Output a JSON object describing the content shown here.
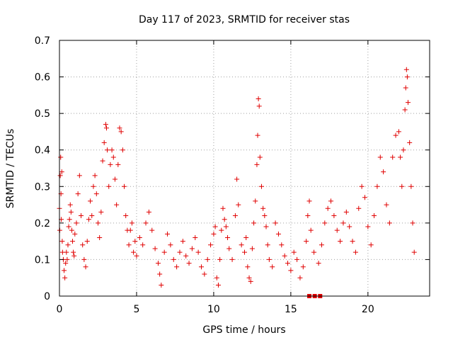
{
  "chart_data": {
    "type": "scatter",
    "title": "Day 117 of 2023, SRMTID for receiver stas",
    "xlabel": "GPS time / hours",
    "ylabel": "SRMTID / TECUs",
    "xlim": [
      0,
      24
    ],
    "ylim": [
      0,
      0.7
    ],
    "xticks": [
      0,
      5,
      10,
      15,
      20
    ],
    "yticks": [
      0,
      0.1,
      0.2,
      0.3,
      0.4,
      0.5,
      0.6,
      0.7
    ],
    "grid": true,
    "marker": "+",
    "color": "#e00000",
    "series": [
      {
        "name": "SRMTID",
        "points": [
          [
            0.0,
            0.24
          ],
          [
            0.02,
            0.18
          ],
          [
            0.05,
            0.33
          ],
          [
            0.08,
            0.38
          ],
          [
            0.1,
            0.28
          ],
          [
            0.12,
            0.21
          ],
          [
            0.15,
            0.34
          ],
          [
            0.18,
            0.15
          ],
          [
            0.2,
            0.12
          ],
          [
            0.25,
            0.1
          ],
          [
            0.3,
            0.07
          ],
          [
            0.35,
            0.05
          ],
          [
            0.4,
            0.09
          ],
          [
            0.45,
            0.12
          ],
          [
            0.5,
            0.1
          ],
          [
            0.55,
            0.14
          ],
          [
            0.6,
            0.19
          ],
          [
            0.65,
            0.21
          ],
          [
            0.7,
            0.25
          ],
          [
            0.75,
            0.23
          ],
          [
            0.8,
            0.18
          ],
          [
            0.85,
            0.15
          ],
          [
            0.9,
            0.12
          ],
          [
            0.95,
            0.11
          ],
          [
            1.0,
            0.17
          ],
          [
            1.1,
            0.2
          ],
          [
            1.2,
            0.28
          ],
          [
            1.3,
            0.33
          ],
          [
            1.4,
            0.22
          ],
          [
            1.5,
            0.14
          ],
          [
            1.6,
            0.1
          ],
          [
            1.7,
            0.08
          ],
          [
            1.8,
            0.15
          ],
          [
            1.9,
            0.21
          ],
          [
            2.0,
            0.26
          ],
          [
            2.1,
            0.22
          ],
          [
            2.2,
            0.3
          ],
          [
            2.3,
            0.33
          ],
          [
            2.4,
            0.28
          ],
          [
            2.5,
            0.2
          ],
          [
            2.6,
            0.16
          ],
          [
            2.7,
            0.23
          ],
          [
            2.8,
            0.37
          ],
          [
            2.9,
            0.42
          ],
          [
            3.0,
            0.47
          ],
          [
            3.05,
            0.46
          ],
          [
            3.1,
            0.4
          ],
          [
            3.2,
            0.3
          ],
          [
            3.3,
            0.36
          ],
          [
            3.4,
            0.4
          ],
          [
            3.5,
            0.38
          ],
          [
            3.6,
            0.32
          ],
          [
            3.7,
            0.25
          ],
          [
            3.8,
            0.36
          ],
          [
            3.9,
            0.46
          ],
          [
            4.0,
            0.45
          ],
          [
            4.1,
            0.4
          ],
          [
            4.2,
            0.3
          ],
          [
            4.3,
            0.22
          ],
          [
            4.4,
            0.18
          ],
          [
            4.5,
            0.14
          ],
          [
            4.6,
            0.18
          ],
          [
            4.7,
            0.2
          ],
          [
            4.8,
            0.12
          ],
          [
            4.9,
            0.15
          ],
          [
            5.0,
            0.11
          ],
          [
            5.2,
            0.16
          ],
          [
            5.4,
            0.14
          ],
          [
            5.6,
            0.2
          ],
          [
            5.8,
            0.23
          ],
          [
            6.0,
            0.18
          ],
          [
            6.2,
            0.13
          ],
          [
            6.4,
            0.09
          ],
          [
            6.5,
            0.06
          ],
          [
            6.6,
            0.03
          ],
          [
            6.8,
            0.12
          ],
          [
            7.0,
            0.17
          ],
          [
            7.2,
            0.14
          ],
          [
            7.4,
            0.1
          ],
          [
            7.6,
            0.08
          ],
          [
            7.8,
            0.12
          ],
          [
            8.0,
            0.15
          ],
          [
            8.2,
            0.11
          ],
          [
            8.4,
            0.09
          ],
          [
            8.6,
            0.13
          ],
          [
            8.8,
            0.16
          ],
          [
            9.0,
            0.12
          ],
          [
            9.2,
            0.08
          ],
          [
            9.4,
            0.06
          ],
          [
            9.6,
            0.1
          ],
          [
            9.8,
            0.14
          ],
          [
            10.0,
            0.17
          ],
          [
            10.1,
            0.19
          ],
          [
            10.2,
            0.05
          ],
          [
            10.3,
            0.03
          ],
          [
            10.4,
            0.1
          ],
          [
            10.5,
            0.18
          ],
          [
            10.6,
            0.24
          ],
          [
            10.7,
            0.21
          ],
          [
            10.8,
            0.19
          ],
          [
            10.9,
            0.16
          ],
          [
            11.0,
            0.13
          ],
          [
            11.2,
            0.1
          ],
          [
            11.4,
            0.22
          ],
          [
            11.5,
            0.32
          ],
          [
            11.6,
            0.25
          ],
          [
            11.8,
            0.14
          ],
          [
            12.0,
            0.12
          ],
          [
            12.1,
            0.16
          ],
          [
            12.2,
            0.08
          ],
          [
            12.3,
            0.05
          ],
          [
            12.4,
            0.04
          ],
          [
            12.5,
            0.13
          ],
          [
            12.6,
            0.2
          ],
          [
            12.7,
            0.26
          ],
          [
            12.8,
            0.36
          ],
          [
            12.85,
            0.44
          ],
          [
            12.9,
            0.54
          ],
          [
            12.95,
            0.52
          ],
          [
            13.0,
            0.38
          ],
          [
            13.1,
            0.3
          ],
          [
            13.2,
            0.24
          ],
          [
            13.3,
            0.22
          ],
          [
            13.4,
            0.19
          ],
          [
            13.5,
            0.14
          ],
          [
            13.6,
            0.1
          ],
          [
            13.8,
            0.08
          ],
          [
            14.0,
            0.2
          ],
          [
            14.2,
            0.17
          ],
          [
            14.4,
            0.14
          ],
          [
            14.6,
            0.11
          ],
          [
            14.8,
            0.09
          ],
          [
            15.0,
            0.07
          ],
          [
            15.2,
            0.12
          ],
          [
            15.4,
            0.1
          ],
          [
            15.6,
            0.05
          ],
          [
            15.8,
            0.08
          ],
          [
            16.0,
            0.15
          ],
          [
            16.1,
            0.22
          ],
          [
            16.2,
            0.26
          ],
          [
            16.3,
            0.18
          ],
          [
            16.5,
            0.12
          ],
          [
            16.8,
            0.09
          ],
          [
            17.0,
            0.14
          ],
          [
            17.2,
            0.2
          ],
          [
            17.4,
            0.24
          ],
          [
            17.6,
            0.26
          ],
          [
            17.8,
            0.22
          ],
          [
            18.0,
            0.18
          ],
          [
            18.2,
            0.15
          ],
          [
            18.4,
            0.2
          ],
          [
            18.6,
            0.23
          ],
          [
            18.8,
            0.19
          ],
          [
            19.0,
            0.15
          ],
          [
            19.2,
            0.12
          ],
          [
            19.4,
            0.24
          ],
          [
            19.6,
            0.3
          ],
          [
            19.8,
            0.27
          ],
          [
            20.0,
            0.19
          ],
          [
            20.2,
            0.14
          ],
          [
            20.4,
            0.22
          ],
          [
            20.6,
            0.3
          ],
          [
            20.8,
            0.38
          ],
          [
            21.0,
            0.34
          ],
          [
            21.2,
            0.25
          ],
          [
            21.4,
            0.2
          ],
          [
            21.6,
            0.38
          ],
          [
            21.8,
            0.44
          ],
          [
            22.0,
            0.45
          ],
          [
            22.1,
            0.38
          ],
          [
            22.2,
            0.3
          ],
          [
            22.3,
            0.4
          ],
          [
            22.4,
            0.51
          ],
          [
            22.45,
            0.57
          ],
          [
            22.5,
            0.62
          ],
          [
            22.55,
            0.6
          ],
          [
            22.6,
            0.53
          ],
          [
            22.7,
            0.42
          ],
          [
            22.8,
            0.3
          ],
          [
            22.9,
            0.2
          ],
          [
            23.0,
            0.12
          ]
        ]
      }
    ],
    "gap_markers": [
      16.2,
      16.55,
      16.9
    ]
  }
}
